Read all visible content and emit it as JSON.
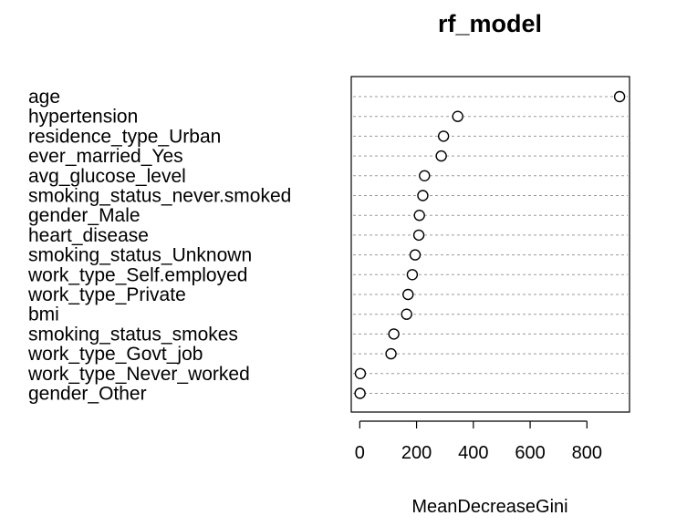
{
  "chart_data": {
    "type": "scatter",
    "title": "rf_model",
    "xlabel": "MeanDecreaseGini",
    "ylabel": "",
    "xlim": [
      -30,
      950
    ],
    "xticks": [
      0,
      200,
      400,
      600,
      800
    ],
    "grid": "dotted horizontal guide per variable",
    "variables": [
      {
        "name": "age",
        "value": 915
      },
      {
        "name": "hypertension",
        "value": 345
      },
      {
        "name": "residence_type_Urban",
        "value": 295
      },
      {
        "name": "ever_married_Yes",
        "value": 287
      },
      {
        "name": "avg_glucose_level",
        "value": 228
      },
      {
        "name": "smoking_status_never.smoked",
        "value": 222
      },
      {
        "name": "gender_Male",
        "value": 210
      },
      {
        "name": "heart_disease",
        "value": 208
      },
      {
        "name": "smoking_status_Unknown",
        "value": 195
      },
      {
        "name": "work_type_Self.employed",
        "value": 185
      },
      {
        "name": "work_type_Private",
        "value": 170
      },
      {
        "name": "bmi",
        "value": 165
      },
      {
        "name": "smoking_status_smokes",
        "value": 120
      },
      {
        "name": "work_type_Govt_job",
        "value": 110
      },
      {
        "name": "work_type_Never_worked",
        "value": 2
      },
      {
        "name": "gender_Other",
        "value": 1
      }
    ]
  }
}
